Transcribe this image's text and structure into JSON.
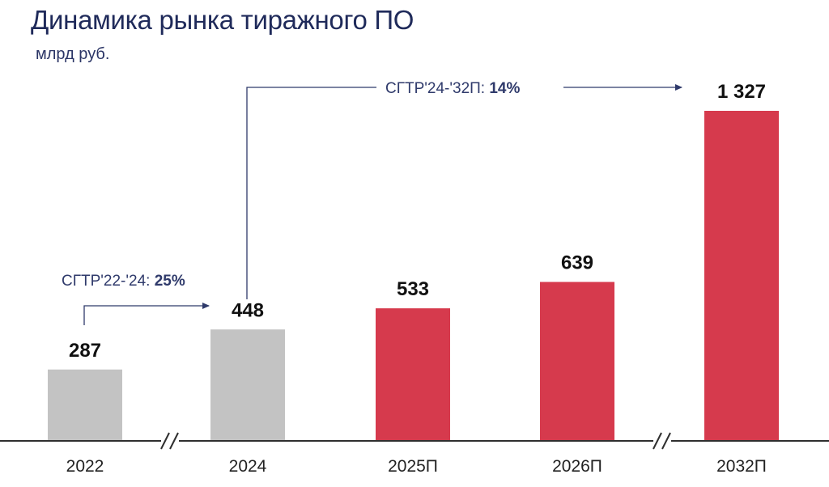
{
  "header": {
    "title": "Динамика рынка тиражного ПО",
    "subtitle": "млрд руб."
  },
  "annotations": {
    "cagr_1_label": "СГТР'22-'24: ",
    "cagr_1_value": "25%",
    "cagr_2_label": "СГТР'24-'32П: ",
    "cagr_2_value": "14%"
  },
  "colors": {
    "actual": "#c3c3c3",
    "forecast": "#d63a4d",
    "title": "#1f2a5a",
    "axis": "#2f2f2f"
  },
  "chart_data": {
    "type": "bar",
    "title": "Динамика рынка тиражного ПО",
    "ylabel": "млрд руб.",
    "xlabel": "",
    "categories": [
      "2022",
      "2024",
      "2025П",
      "2026П",
      "2032П"
    ],
    "values": [
      287,
      448,
      533,
      639,
      1327
    ],
    "value_labels": [
      "287",
      "448",
      "533",
      "639",
      "1 327"
    ],
    "series_kind": [
      "actual",
      "actual",
      "forecast",
      "forecast",
      "forecast"
    ],
    "ylim": [
      0,
      1400
    ],
    "axis_breaks_after": [
      "2022",
      "2026П"
    ],
    "grid": false,
    "legend": "none"
  }
}
